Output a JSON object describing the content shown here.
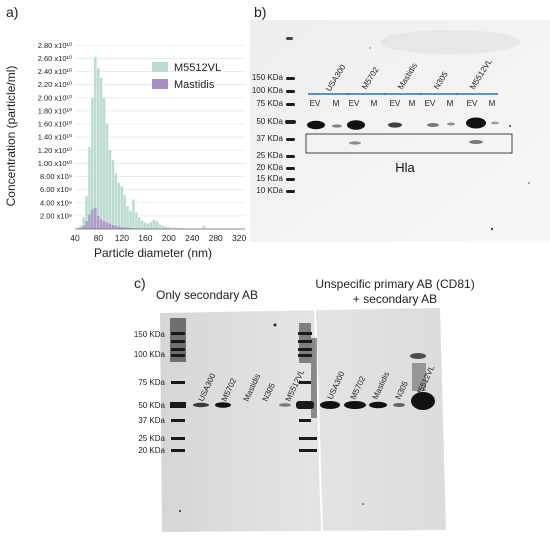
{
  "panel_a": {
    "label": "a)",
    "chart_data": {
      "type": "bar",
      "title": "",
      "xlabel": "Particle diameter (nm)",
      "ylabel": "Concentration (particle/ml)",
      "x": [
        40,
        45,
        50,
        55,
        60,
        65,
        70,
        75,
        80,
        85,
        90,
        95,
        100,
        105,
        110,
        115,
        120,
        125,
        130,
        135,
        140,
        145,
        150,
        155,
        160,
        165,
        170,
        175,
        180,
        185,
        190,
        195,
        200,
        205,
        210,
        215,
        220,
        225,
        230,
        235,
        240,
        245,
        250,
        255,
        260,
        265,
        270,
        275,
        280,
        285,
        290,
        295,
        300,
        305,
        310,
        315,
        320
      ],
      "xlim": [
        40,
        330
      ],
      "ylim": [
        0,
        28500000000
      ],
      "xticks": [
        "40",
        "80",
        "120",
        "160",
        "200",
        "240",
        "280",
        "320"
      ],
      "yticks": [
        "2.00 x10⁹",
        "4.00 x10⁹",
        "6.00 x10⁹",
        "8.00 x10⁹",
        "1.00 x10¹⁰",
        "1.20 x10¹⁰",
        "1.40 x10¹⁰",
        "1.60 x10¹⁰",
        "1.80 x10¹⁰",
        "2.00 x10¹⁰",
        "2.20 x10¹⁰",
        "2.40 x10¹⁰",
        "2.60 x10¹⁰",
        "2.80 x10¹⁰"
      ],
      "ytick_values": [
        2000000000.0,
        4000000000.0,
        6000000000.0,
        8000000000.0,
        10000000000.0,
        12000000000.0,
        14000000000.0,
        16000000000.0,
        18000000000.0,
        20000000000.0,
        22000000000.0,
        24000000000.0,
        26000000000.0,
        28000000000.0
      ],
      "legend_position": "top-right",
      "series": [
        {
          "name": "M5512VL",
          "color": "#bcdcd0",
          "values": [
            0,
            150000000.0,
            500000000.0,
            1800000000.0,
            5000000000.0,
            12500000000.0,
            20000000000.0,
            26200000000.0,
            24500000000.0,
            23000000000.0,
            20000000000.0,
            16000000000.0,
            12000000000.0,
            10500000000.0,
            8500000000.0,
            7000000000.0,
            6500000000.0,
            5200000000.0,
            3500000000.0,
            2800000000.0,
            4500000000.0,
            2500000000.0,
            1800000000.0,
            1300000000.0,
            1000000000.0,
            800000000.0,
            1100000000.0,
            1400000000.0,
            1200000000.0,
            700000000.0,
            500000000.0,
            400000000.0,
            300000000.0,
            200000000.0,
            200000000.0,
            150000000.0,
            100000000.0,
            100000000.0,
            80000000.0,
            60000000.0,
            50000000.0,
            40000000.0,
            30000000.0,
            30000000.0,
            500000000.0,
            30000000.0,
            20000000.0,
            20000000.0,
            20000000.0,
            10000000.0,
            10000000.0,
            10000000.0,
            10000000.0,
            0,
            0,
            0,
            0
          ]
        },
        {
          "name": "Mastidis",
          "color": "#a78fc4",
          "values": [
            0,
            50000000.0,
            150000000.0,
            500000000.0,
            1200000000.0,
            2200000000.0,
            3000000000.0,
            3200000000.0,
            2000000000.0,
            1500000000.0,
            1200000000.0,
            1000000000.0,
            800000000.0,
            600000000.0,
            500000000.0,
            400000000.0,
            300000000.0,
            250000000.0,
            200000000.0,
            150000000.0,
            120000000.0,
            100000000.0,
            80000000.0,
            60000000.0,
            50000000.0,
            40000000.0,
            30000000.0,
            20000000.0,
            20000000.0,
            10000000.0,
            10000000.0,
            10000000.0,
            0,
            0,
            0,
            0,
            0,
            0,
            0,
            0,
            0,
            0,
            0,
            0,
            0,
            0,
            0,
            0,
            0,
            0,
            0,
            0,
            0,
            0,
            0,
            0,
            0
          ]
        }
      ]
    }
  },
  "panel_b": {
    "label": "b)",
    "ladder_labels": [
      "150 KDa",
      "100 KDa",
      "75 KDa",
      "50 KDa",
      "37 KDa",
      "25 KDa",
      "20 KDa",
      "15 KDa",
      "10 KDa"
    ],
    "samples": [
      "USA300",
      "M5702",
      "Mastidis",
      "N305",
      "M5512VL"
    ],
    "lane_labels": [
      "EV",
      "M",
      "EV",
      "M",
      "EV",
      "M",
      "EV",
      "M",
      "EV",
      "M"
    ],
    "box_label": "Hla"
  },
  "panel_c": {
    "label": "c)",
    "group1_title": "Only secondary AB",
    "group2_title_line1": "Unspecific primary AB (CD81)",
    "group2_title_line2": "+ secondary AB",
    "ladder_labels": [
      "150 KDa",
      "100 KDa",
      "75 KDa",
      "50 KDa",
      "37 KDa",
      "25 KDa",
      "20 KDa"
    ],
    "group1_samples": [
      "USA300",
      "M5702",
      "Mastidis",
      "N305",
      "M5512VL"
    ],
    "group2_samples": [
      "USA300",
      "M5702",
      "Mastidis",
      "N305",
      "M5512VL"
    ]
  }
}
